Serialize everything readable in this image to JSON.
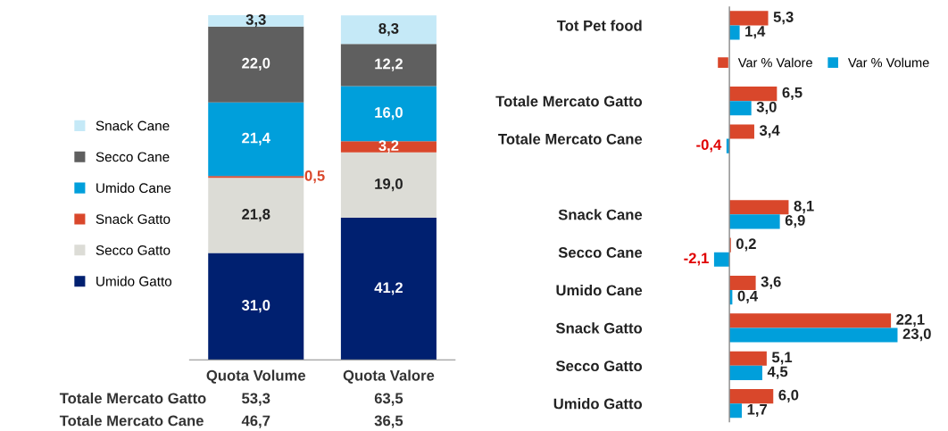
{
  "chart_data": [
    {
      "type": "bar",
      "stacked": true,
      "legend": "left",
      "categories": [
        "Quota Volume",
        "Quota Valore"
      ],
      "series": [
        {
          "name": "Umido Gatto",
          "color": "#002070",
          "values": [
            31.0,
            41.2
          ],
          "value_labels": [
            "31,0",
            "41,2"
          ]
        },
        {
          "name": "Secco Gatto",
          "color": "#dcdcd6",
          "values": [
            21.8,
            19.0
          ],
          "value_labels": [
            "21,8",
            "19,0"
          ]
        },
        {
          "name": "Snack Gatto",
          "color": "#d9472b",
          "values": [
            0.5,
            3.2
          ],
          "value_labels": [
            "0,5",
            "3,2"
          ]
        },
        {
          "name": "Umido Cane",
          "color": "#009fdb",
          "values": [
            21.4,
            16.0
          ],
          "value_labels": [
            "21,4",
            "16,0"
          ]
        },
        {
          "name": "Secco Cane",
          "color": "#5f5f5f",
          "values": [
            22.0,
            12.2
          ],
          "value_labels": [
            "22,0",
            "12,2"
          ]
        },
        {
          "name": "Snack Cane",
          "color": "#c5e9f7",
          "values": [
            3.3,
            8.3
          ],
          "value_labels": [
            "3,3",
            "8,3"
          ]
        }
      ],
      "annotations": [
        "Totale Mercato Gatto",
        "53,3",
        "63,5",
        "Totale Mercato Cane",
        "46,7",
        "36,5"
      ]
    },
    {
      "type": "bar",
      "orientation": "horizontal",
      "legend": "top",
      "categories": [
        "Tot Pet food",
        null,
        "Totale Mercato Gatto",
        "Totale Mercato Cane",
        null,
        "Snack Cane",
        "Secco Cane",
        "Umido Cane",
        "Snack Gatto",
        "Secco Gatto",
        "Umido Gatto"
      ],
      "series": [
        {
          "name": "Var % Valore",
          "color": "#d9472b",
          "values": [
            5.3,
            null,
            6.5,
            3.4,
            null,
            8.1,
            0.2,
            3.6,
            22.1,
            5.1,
            6.0
          ],
          "value_labels": [
            "5,3",
            null,
            "6,5",
            "3,4",
            null,
            "8,1",
            "0,2",
            "3,6",
            "22,1",
            "5,1",
            "6,0"
          ]
        },
        {
          "name": "Var % Volume",
          "color": "#009fdb",
          "values": [
            1.4,
            null,
            3.0,
            -0.4,
            null,
            6.9,
            -2.1,
            0.4,
            23.0,
            4.5,
            1.7
          ],
          "value_labels": [
            "1,4",
            null,
            "3,0",
            "-0,4",
            null,
            "6,9",
            "-2,1",
            "0,4",
            "23,0",
            "4,5",
            "1,7"
          ]
        }
      ]
    }
  ]
}
